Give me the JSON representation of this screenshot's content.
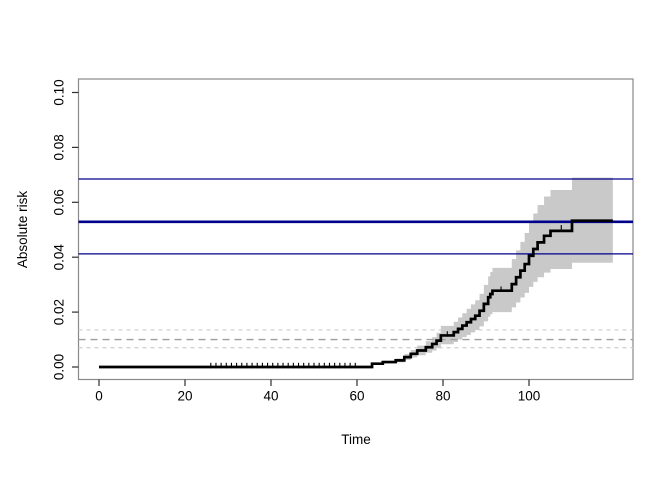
{
  "figure": {
    "background": "#ffffff"
  },
  "chart_data": {
    "type": "line",
    "subtype": "step-function-with-confidence-band",
    "title": "",
    "xlabel": "Time",
    "ylabel": "Absolute risk",
    "xlim": [
      0,
      119.5
    ],
    "ylim": [
      0,
      0.1
    ],
    "grid": false,
    "legend": "none",
    "x_ticks": [
      0,
      20,
      40,
      60,
      80,
      100
    ],
    "x_tick_labels": [
      "0",
      "20",
      "40",
      "60",
      "80",
      "100"
    ],
    "y_ticks": [
      0.0,
      0.02,
      0.04,
      0.06,
      0.08,
      0.1
    ],
    "y_tick_labels": [
      "0.00",
      "0.02",
      "0.04",
      "0.06",
      "0.08",
      "0.10"
    ],
    "series": [
      {
        "name": "absolute-risk-step-curve",
        "color": "#000000",
        "line_width": 2.7,
        "x": [
          0,
          63.5,
          66,
          69,
          71,
          72.5,
          74,
          76,
          77.5,
          78.5,
          79.5,
          82.5,
          83.5,
          84.5,
          85.5,
          86.5,
          87.5,
          88.5,
          89.5,
          90.5,
          91,
          91.5,
          96,
          97,
          98,
          99,
          100,
          101,
          102,
          103.5,
          105,
          110,
          119.5
        ],
        "y": [
          0,
          0.0012,
          0.0018,
          0.0024,
          0.0036,
          0.0048,
          0.006,
          0.0072,
          0.0084,
          0.0096,
          0.0115,
          0.0127,
          0.0139,
          0.0151,
          0.0163,
          0.0175,
          0.0187,
          0.0205,
          0.023,
          0.0254,
          0.0266,
          0.0278,
          0.0302,
          0.0327,
          0.0351,
          0.0375,
          0.0405,
          0.043,
          0.0454,
          0.0478,
          0.0496,
          0.0533,
          0.0533
        ]
      }
    ],
    "confidence_band": {
      "color": "#c9c9c9",
      "x": [
        63.5,
        66,
        69,
        71,
        72.5,
        74,
        76,
        77.5,
        78.5,
        79.5,
        82.5,
        83.5,
        84.5,
        85.5,
        86.5,
        87.5,
        88.5,
        89.5,
        90.5,
        91,
        91.5,
        96,
        97,
        98,
        99,
        100,
        101,
        102,
        103.5,
        105,
        110,
        119.5
      ],
      "lower": [
        0.0009,
        0.0013,
        0.0017,
        0.0026,
        0.0035,
        0.0043,
        0.0052,
        0.006,
        0.0069,
        0.0083,
        0.0091,
        0.01,
        0.0109,
        0.0117,
        0.0126,
        0.0135,
        0.0148,
        0.0166,
        0.0183,
        0.0192,
        0.02,
        0.0217,
        0.0235,
        0.0253,
        0.027,
        0.0292,
        0.031,
        0.0327,
        0.0344,
        0.0357,
        0.038,
        0.038
      ],
      "upper": [
        0.0016,
        0.0023,
        0.0031,
        0.0047,
        0.0062,
        0.0078,
        0.0094,
        0.0109,
        0.0125,
        0.015,
        0.0165,
        0.0181,
        0.0196,
        0.0212,
        0.0228,
        0.0243,
        0.0267,
        0.0299,
        0.033,
        0.0346,
        0.0361,
        0.0393,
        0.0425,
        0.0456,
        0.0488,
        0.0527,
        0.0559,
        0.059,
        0.0621,
        0.0645,
        0.069,
        0.069
      ]
    },
    "reference_lines_solid": [
      {
        "y": 0.0685,
        "color": "#00008B",
        "width": 1.2
      },
      {
        "y": 0.0529,
        "color": "#00008B",
        "width": 2.6
      },
      {
        "y": 0.0412,
        "color": "#00008B",
        "width": 1.2
      }
    ],
    "reference_lines_dashed": [
      {
        "y": 0.0135,
        "color": "#cccccc",
        "width": 1.2,
        "dash": "4,4"
      },
      {
        "y": 0.01,
        "color": "#9e9e9e",
        "width": 1.3,
        "dash": "7,5"
      },
      {
        "y": 0.007,
        "color": "#cccccc",
        "width": 1.2,
        "dash": "4,4"
      }
    ],
    "censor_marks_baseline_times": [
      26,
      27.2,
      28.4,
      29.6,
      30.8,
      32,
      33.2,
      34.4,
      35.6,
      36.8,
      38,
      39.2,
      40.4,
      41.6,
      42.8,
      44,
      45.2,
      46.4,
      47.6,
      48.8,
      50,
      51.2,
      52.4,
      53.6,
      54.8,
      56,
      57.2,
      58.4,
      59.6
    ],
    "censor_marks_on_curve": [
      {
        "x": 81,
        "y": 0.0115
      },
      {
        "x": 93.5,
        "y": 0.0278
      },
      {
        "x": 107.5,
        "y": 0.0502
      }
    ],
    "axis_colors": {
      "box": "#898989",
      "tick": "#2f2f2f",
      "label": "#000000"
    }
  }
}
